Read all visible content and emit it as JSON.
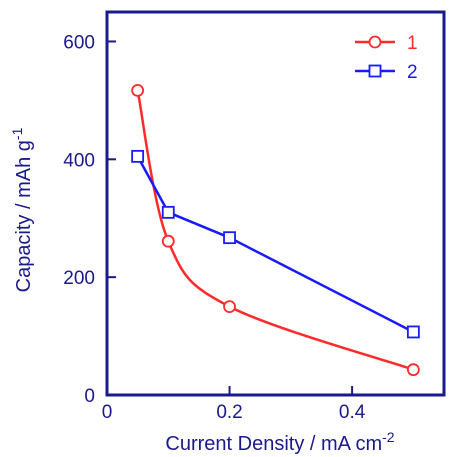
{
  "chart_data": {
    "type": "line",
    "xlabel": "Current Density / mA cm",
    "xlabel_sup": "-2",
    "ylabel": "Capacity / mAh g",
    "ylabel_sup": "-1",
    "xlim": [
      0,
      0.55
    ],
    "ylim": [
      0,
      650
    ],
    "x_ticks": [
      0,
      0.2,
      0.4
    ],
    "x_tick_labels": [
      "0",
      "0.2",
      "0.4"
    ],
    "y_ticks": [
      0,
      200,
      400,
      600
    ],
    "y_tick_labels": [
      "0",
      "200",
      "400",
      "600"
    ],
    "legend_position": "top-right",
    "axis_color": "#1a1a8c",
    "series": [
      {
        "name": "1",
        "color": "#ff2a2a",
        "marker": "circle",
        "x": [
          0.05,
          0.1,
          0.2,
          0.5
        ],
        "y": [
          517,
          261,
          150,
          43
        ]
      },
      {
        "name": "2",
        "color": "#1a1aff",
        "marker": "square",
        "x": [
          0.05,
          0.1,
          0.2,
          0.5
        ],
        "y": [
          405,
          310,
          267,
          107
        ]
      }
    ]
  }
}
